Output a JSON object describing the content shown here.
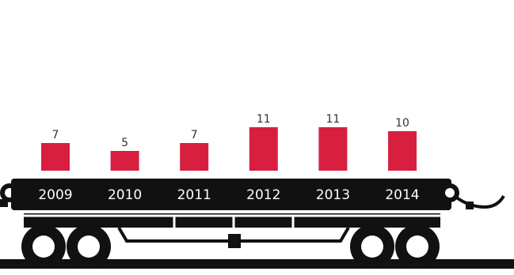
{
  "chart_data": {
    "type": "bar",
    "categories": [
      "2009",
      "2010",
      "2011",
      "2012",
      "2013",
      "2014"
    ],
    "values": [
      7,
      5,
      7,
      11,
      11,
      10
    ],
    "color": "#d7203f"
  }
}
